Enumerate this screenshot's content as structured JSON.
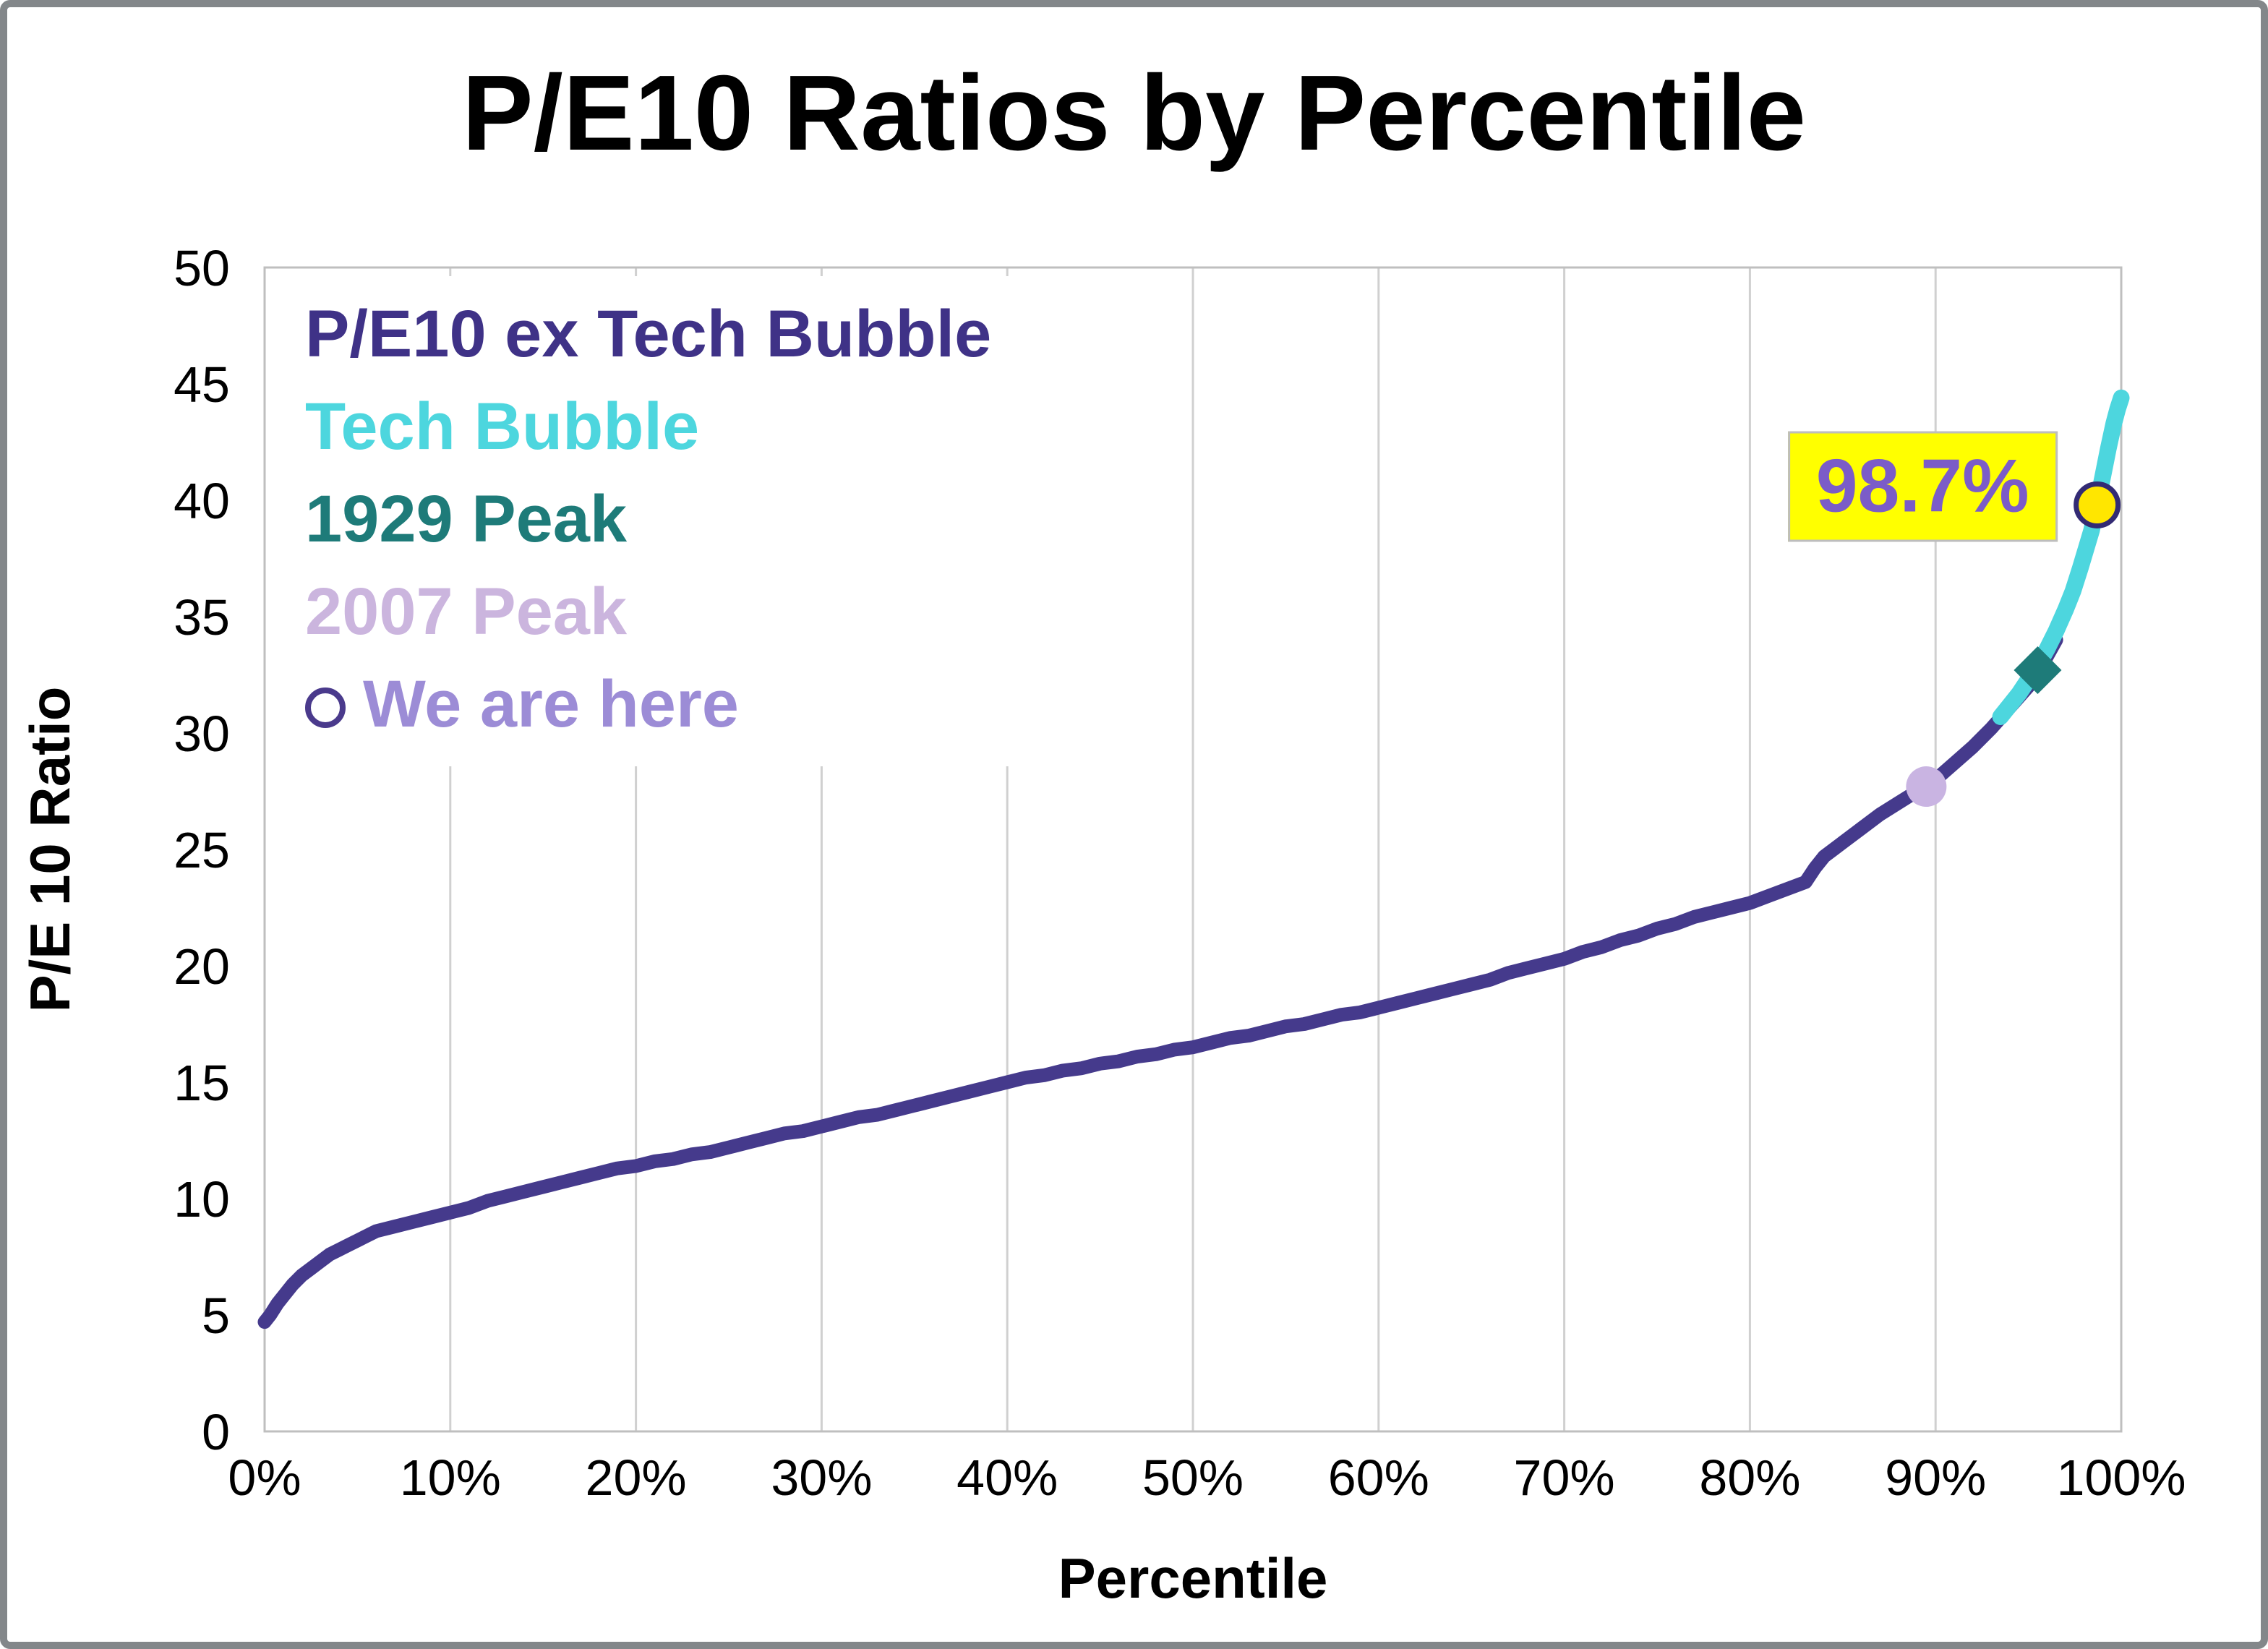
{
  "chart_data": {
    "type": "line",
    "title": "P/E10 Ratios by Percentile",
    "xlabel": "Percentile",
    "ylabel": "P/E 10 Ratio",
    "xlim": [
      0,
      100
    ],
    "ylim": [
      0,
      50
    ],
    "x_tick_values": [
      0,
      10,
      20,
      30,
      40,
      50,
      60,
      70,
      80,
      90,
      100
    ],
    "x_tick_labels": [
      "0%",
      "10%",
      "20%",
      "30%",
      "40%",
      "50%",
      "60%",
      "70%",
      "80%",
      "90%",
      "100%"
    ],
    "y_tick_values": [
      0,
      5,
      10,
      15,
      20,
      25,
      30,
      35,
      40,
      45,
      50
    ],
    "grid": {
      "vertical": true,
      "horizontal": false,
      "color": "#D0D0D0"
    },
    "plot_border_color": "#BFBFBF",
    "legend": {
      "position": "top-left-inside",
      "items": [
        {
          "label": "P/E10 ex Tech Bubble",
          "color": "#3F3287",
          "symbol": "none"
        },
        {
          "label": "Tech Bubble",
          "color": "#4DD6DE",
          "symbol": "none"
        },
        {
          "label": "1929 Peak",
          "color": "#1E7B79",
          "symbol": "none"
        },
        {
          "label": "2007 Peak",
          "color": "#CBB5DE",
          "symbol": "none"
        },
        {
          "label": "We are here",
          "color": "#9C8CD6",
          "symbol": "open-circle",
          "symbol_color": "#4A3A8C"
        }
      ]
    },
    "annotation": {
      "label": "98.7%",
      "x": 98.7,
      "y": 39.8,
      "text_color": "#7B5CC8",
      "bg_color": "#FFFF00",
      "border_color": "#BDBDBD"
    },
    "series": [
      {
        "name": "P/E10 ex Tech Bubble",
        "color": "#453A8C",
        "style": "line",
        "width": 19,
        "points": [
          [
            0,
            4.7
          ],
          [
            0.3,
            5.0
          ],
          [
            0.7,
            5.5
          ],
          [
            1,
            5.8
          ],
          [
            1.5,
            6.3
          ],
          [
            2,
            6.7
          ],
          [
            2.5,
            7.0
          ],
          [
            3,
            7.3
          ],
          [
            3.5,
            7.6
          ],
          [
            4,
            7.8
          ],
          [
            4.5,
            8.0
          ],
          [
            5,
            8.2
          ],
          [
            6,
            8.6
          ],
          [
            7,
            8.8
          ],
          [
            8,
            9.0
          ],
          [
            9,
            9.2
          ],
          [
            10,
            9.4
          ],
          [
            11,
            9.6
          ],
          [
            12,
            9.9
          ],
          [
            13,
            10.1
          ],
          [
            14,
            10.3
          ],
          [
            15,
            10.5
          ],
          [
            16,
            10.7
          ],
          [
            17,
            10.9
          ],
          [
            18,
            11.1
          ],
          [
            19,
            11.3
          ],
          [
            20,
            11.4
          ],
          [
            21,
            11.6
          ],
          [
            22,
            11.7
          ],
          [
            23,
            11.9
          ],
          [
            24,
            12.0
          ],
          [
            25,
            12.2
          ],
          [
            26,
            12.4
          ],
          [
            27,
            12.6
          ],
          [
            28,
            12.8
          ],
          [
            29,
            12.9
          ],
          [
            30,
            13.1
          ],
          [
            31,
            13.3
          ],
          [
            32,
            13.5
          ],
          [
            33,
            13.6
          ],
          [
            34,
            13.8
          ],
          [
            35,
            14.0
          ],
          [
            36,
            14.2
          ],
          [
            37,
            14.4
          ],
          [
            38,
            14.6
          ],
          [
            39,
            14.8
          ],
          [
            40,
            15.0
          ],
          [
            41,
            15.2
          ],
          [
            42,
            15.3
          ],
          [
            43,
            15.5
          ],
          [
            44,
            15.6
          ],
          [
            45,
            15.8
          ],
          [
            46,
            15.9
          ],
          [
            47,
            16.1
          ],
          [
            48,
            16.2
          ],
          [
            49,
            16.4
          ],
          [
            50,
            16.5
          ],
          [
            51,
            16.7
          ],
          [
            52,
            16.9
          ],
          [
            53,
            17.0
          ],
          [
            54,
            17.2
          ],
          [
            55,
            17.4
          ],
          [
            56,
            17.5
          ],
          [
            57,
            17.7
          ],
          [
            58,
            17.9
          ],
          [
            59,
            18.0
          ],
          [
            60,
            18.2
          ],
          [
            61,
            18.4
          ],
          [
            62,
            18.6
          ],
          [
            63,
            18.8
          ],
          [
            64,
            19.0
          ],
          [
            65,
            19.2
          ],
          [
            66,
            19.4
          ],
          [
            67,
            19.7
          ],
          [
            68,
            19.9
          ],
          [
            69,
            20.1
          ],
          [
            70,
            20.3
          ],
          [
            71,
            20.6
          ],
          [
            72,
            20.8
          ],
          [
            73,
            21.1
          ],
          [
            74,
            21.3
          ],
          [
            75,
            21.6
          ],
          [
            76,
            21.8
          ],
          [
            77,
            22.1
          ],
          [
            78,
            22.3
          ],
          [
            79,
            22.5
          ],
          [
            80,
            22.7
          ],
          [
            81,
            23.0
          ],
          [
            82,
            23.3
          ],
          [
            83,
            23.6
          ],
          [
            83.5,
            24.2
          ],
          [
            84,
            24.7
          ],
          [
            85,
            25.3
          ],
          [
            86,
            25.9
          ],
          [
            87,
            26.5
          ],
          [
            88,
            27.0
          ],
          [
            89,
            27.5
          ],
          [
            90,
            28.0
          ],
          [
            91,
            28.7
          ],
          [
            92,
            29.4
          ],
          [
            93,
            30.2
          ],
          [
            94,
            31.1
          ],
          [
            95,
            32.0
          ],
          [
            95.8,
            33.0
          ],
          [
            96.5,
            34.0
          ]
        ]
      },
      {
        "name": "Tech Bubble",
        "color": "#4DD6DE",
        "style": "line",
        "width": 23,
        "points": [
          [
            93.5,
            30.7
          ],
          [
            94,
            31.2
          ],
          [
            94.5,
            31.7
          ],
          [
            95,
            32.3
          ],
          [
            95.5,
            32.9
          ],
          [
            96,
            33.6
          ],
          [
            96.5,
            34.4
          ],
          [
            97,
            35.3
          ],
          [
            97.4,
            36.1
          ],
          [
            97.8,
            37.1
          ],
          [
            98.1,
            37.9
          ],
          [
            98.4,
            38.7
          ],
          [
            98.7,
            39.8
          ],
          [
            99,
            41.0
          ],
          [
            99.3,
            42.2
          ],
          [
            99.6,
            43.3
          ],
          [
            99.8,
            43.9
          ],
          [
            100,
            44.4
          ]
        ]
      },
      {
        "name": "1929 Peak",
        "color": "#1E7B79",
        "style": "diamond",
        "size": 33,
        "points": [
          [
            95.5,
            32.7
          ]
        ]
      },
      {
        "name": "2007 Peak",
        "color": "#C9B4E2",
        "style": "circle",
        "size": 28,
        "points": [
          [
            89.5,
            27.7
          ]
        ]
      },
      {
        "name": "We are here",
        "color": "#FFE600",
        "stroke": "#332B74",
        "stroke_width": 7,
        "style": "open-circle",
        "size": 29,
        "points": [
          [
            98.7,
            39.8
          ]
        ]
      }
    ]
  }
}
